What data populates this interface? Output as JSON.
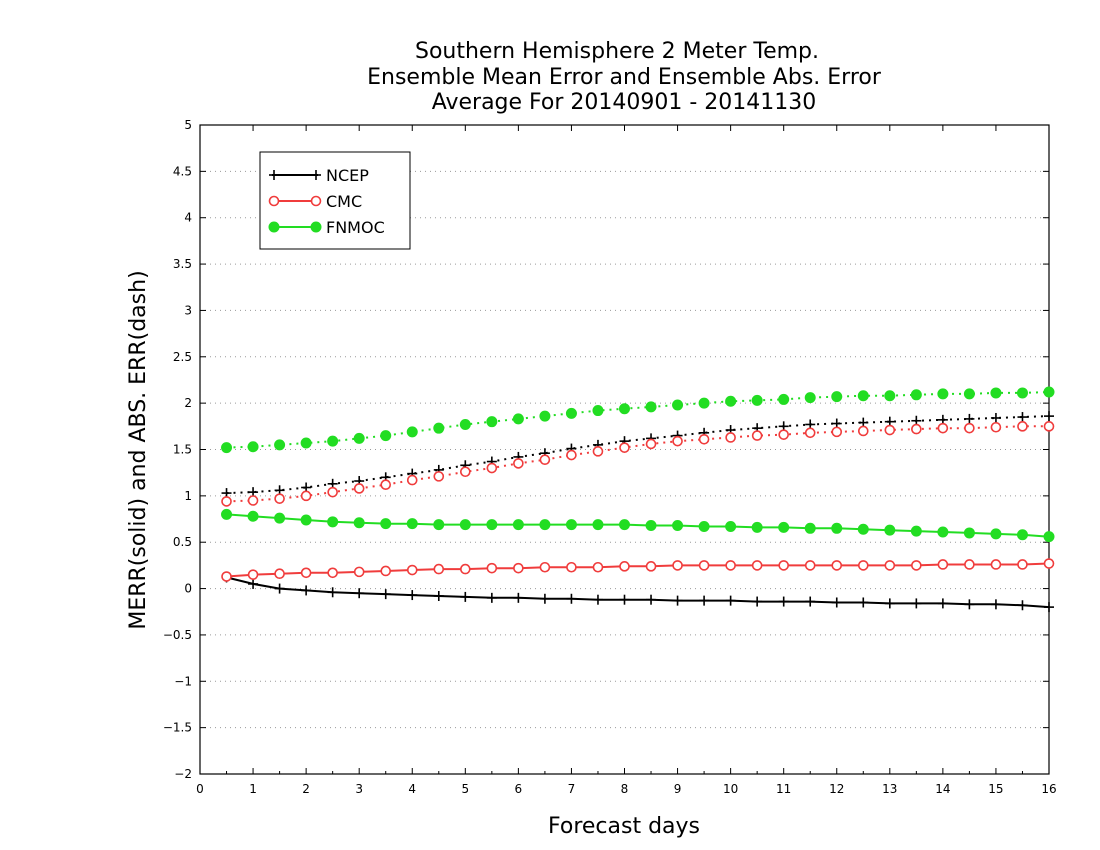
{
  "chart_data": {
    "type": "line",
    "title_lines": [
      "Southern Hemisphere 2 Meter Temp.",
      "Ensemble Mean Error and Ensemble Abs. Error",
      "Average For 20140901 - 20141130"
    ],
    "xlabel": "Forecast days",
    "ylabel": "MERR(solid) and ABS. ERR(dash)",
    "xlim": [
      0,
      16
    ],
    "ylim": [
      -2,
      5
    ],
    "x_ticks": [
      "0",
      "1",
      "2",
      "3",
      "4",
      "5",
      "6",
      "7",
      "8",
      "9",
      "10",
      "11",
      "12",
      "13",
      "14",
      "15",
      "16"
    ],
    "y_ticks": [
      "5",
      "4.5",
      "4",
      "3.5",
      "3",
      "2.5",
      "2",
      "1.5",
      "1",
      "0.5",
      "0",
      "−0.5",
      "−1",
      "−1.5",
      "−2"
    ],
    "y_tick_values": [
      5,
      4.5,
      4,
      3.5,
      3,
      2.5,
      2,
      1.5,
      1,
      0.5,
      0,
      -0.5,
      -1,
      -1.5,
      -2
    ],
    "grid": "horizontal dotted",
    "legend_placement": "top-left",
    "x": [
      0.5,
      1,
      1.5,
      2,
      2.5,
      3,
      3.5,
      4,
      4.5,
      5,
      5.5,
      6,
      6.5,
      7,
      7.5,
      8,
      8.5,
      9,
      9.5,
      10,
      10.5,
      11,
      11.5,
      12,
      12.5,
      13,
      13.5,
      14,
      14.5,
      15,
      15.5,
      16
    ],
    "series": [
      {
        "name": "NCEP",
        "color": "#000000",
        "marker": "plus",
        "merr": [
          0.12,
          0.05,
          0.0,
          -0.02,
          -0.04,
          -0.05,
          -0.06,
          -0.07,
          -0.08,
          -0.09,
          -0.1,
          -0.1,
          -0.11,
          -0.11,
          -0.12,
          -0.12,
          -0.12,
          -0.13,
          -0.13,
          -0.13,
          -0.14,
          -0.14,
          -0.14,
          -0.15,
          -0.15,
          -0.16,
          -0.16,
          -0.16,
          -0.17,
          -0.17,
          -0.18,
          -0.2
        ],
        "abs_err": [
          1.03,
          1.04,
          1.06,
          1.09,
          1.13,
          1.16,
          1.2,
          1.24,
          1.28,
          1.33,
          1.37,
          1.42,
          1.46,
          1.51,
          1.55,
          1.59,
          1.62,
          1.65,
          1.68,
          1.71,
          1.73,
          1.75,
          1.77,
          1.78,
          1.79,
          1.8,
          1.81,
          1.82,
          1.83,
          1.84,
          1.85,
          1.86
        ]
      },
      {
        "name": "CMC",
        "color": "#f03c3c",
        "marker": "open-circle",
        "merr": [
          0.13,
          0.15,
          0.16,
          0.17,
          0.17,
          0.18,
          0.19,
          0.2,
          0.21,
          0.21,
          0.22,
          0.22,
          0.23,
          0.23,
          0.23,
          0.24,
          0.24,
          0.25,
          0.25,
          0.25,
          0.25,
          0.25,
          0.25,
          0.25,
          0.25,
          0.25,
          0.25,
          0.26,
          0.26,
          0.26,
          0.26,
          0.27
        ],
        "abs_err": [
          0.94,
          0.95,
          0.97,
          1.0,
          1.04,
          1.08,
          1.12,
          1.17,
          1.21,
          1.26,
          1.3,
          1.35,
          1.39,
          1.44,
          1.48,
          1.52,
          1.56,
          1.59,
          1.61,
          1.63,
          1.65,
          1.66,
          1.68,
          1.69,
          1.7,
          1.71,
          1.72,
          1.73,
          1.73,
          1.74,
          1.75,
          1.75
        ]
      },
      {
        "name": "FNMOC",
        "color": "#22dd22",
        "marker": "filled-circle",
        "merr": [
          0.8,
          0.78,
          0.76,
          0.74,
          0.72,
          0.71,
          0.7,
          0.7,
          0.69,
          0.69,
          0.69,
          0.69,
          0.69,
          0.69,
          0.69,
          0.69,
          0.68,
          0.68,
          0.67,
          0.67,
          0.66,
          0.66,
          0.65,
          0.65,
          0.64,
          0.63,
          0.62,
          0.61,
          0.6,
          0.59,
          0.58,
          0.56
        ],
        "abs_err": [
          1.52,
          1.53,
          1.55,
          1.57,
          1.59,
          1.62,
          1.65,
          1.69,
          1.73,
          1.77,
          1.8,
          1.83,
          1.86,
          1.89,
          1.92,
          1.94,
          1.96,
          1.98,
          2.0,
          2.02,
          2.03,
          2.04,
          2.06,
          2.07,
          2.08,
          2.08,
          2.09,
          2.1,
          2.1,
          2.11,
          2.11,
          2.12
        ]
      }
    ]
  }
}
